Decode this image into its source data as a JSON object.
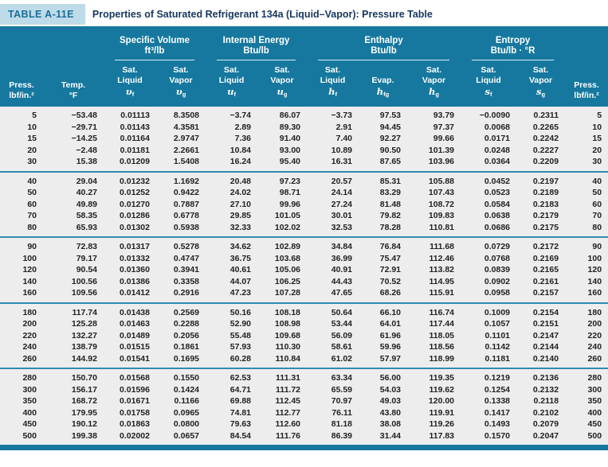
{
  "header": {
    "table_number": "TABLE A-11E",
    "title": "Properties of Saturated Refrigerant 134a (Liquid–Vapor): Pressure Table"
  },
  "colors": {
    "band_teal": "#16789f",
    "badge_bg": "#bedbe9",
    "badge_text": "#1b6d97",
    "title_text": "#17375f",
    "data_bg": "#ededee",
    "group_rule": "#2e8cb0"
  },
  "table": {
    "group_headers": [
      {
        "title": "Specific Volume",
        "unit": "ft³/lb"
      },
      {
        "title": "Internal Energy",
        "unit": "Btu/lb"
      },
      {
        "title": "Enthalpy",
        "unit": "Btu/lb"
      },
      {
        "title": "Entropy",
        "unit": "Btu/lb · °R"
      }
    ],
    "columns": [
      {
        "l1": "Press.",
        "l2": "lbf/in.²"
      },
      {
        "l1": "Temp.",
        "l2": "°F"
      },
      {
        "l1": "Sat.",
        "l2": "Liquid",
        "sym_b": "υ",
        "sym_s": "f"
      },
      {
        "l1": "Sat.",
        "l2": "Vapor",
        "sym_b": "υ",
        "sym_s": "g"
      },
      {
        "l1": "Sat.",
        "l2": "Liquid",
        "sym_b": "u",
        "sym_s": "f"
      },
      {
        "l1": "Sat.",
        "l2": "Vapor",
        "sym_b": "u",
        "sym_s": "g"
      },
      {
        "l1": "Sat.",
        "l2": "Liquid",
        "sym_b": "h",
        "sym_s": "f"
      },
      {
        "l1": "Evap.",
        "sym_b": "h",
        "sym_s": "fg"
      },
      {
        "l1": "Sat.",
        "l2": "Vapor",
        "sym_b": "h",
        "sym_s": "g"
      },
      {
        "l1": "Sat.",
        "l2": "Liquid",
        "sym_b": "s",
        "sym_s": "f"
      },
      {
        "l1": "Sat.",
        "l2": "Vapor",
        "sym_b": "s",
        "sym_s": "g"
      },
      {
        "l1": "Press.",
        "l2": "lbf/in.²"
      }
    ],
    "groups": [
      {
        "rows": [
          [
            "5",
            "−53.48",
            "0.01113",
            "8.3508",
            "−3.74",
            "86.07",
            "−3.73",
            "97.53",
            "93.79",
            "−0.0090",
            "0.2311",
            "5"
          ],
          [
            "10",
            "−29.71",
            "0.01143",
            "4.3581",
            "2.89",
            "89.30",
            "2.91",
            "94.45",
            "97.37",
            "0.0068",
            "0.2265",
            "10"
          ],
          [
            "15",
            "−14.25",
            "0.01164",
            "2.9747",
            "7.36",
            "91.40",
            "7.40",
            "92.27",
            "99.66",
            "0.0171",
            "0.2242",
            "15"
          ],
          [
            "20",
            "−2.48",
            "0.01181",
            "2.2661",
            "10.84",
            "93.00",
            "10.89",
            "90.50",
            "101.39",
            "0.0248",
            "0.2227",
            "20"
          ],
          [
            "30",
            "15.38",
            "0.01209",
            "1.5408",
            "16.24",
            "95.40",
            "16.31",
            "87.65",
            "103.96",
            "0.0364",
            "0.2209",
            "30"
          ]
        ]
      },
      {
        "rows": [
          [
            "40",
            "29.04",
            "0.01232",
            "1.1692",
            "20.48",
            "97.23",
            "20.57",
            "85.31",
            "105.88",
            "0.0452",
            "0.2197",
            "40"
          ],
          [
            "50",
            "40.27",
            "0.01252",
            "0.9422",
            "24.02",
            "98.71",
            "24.14",
            "83.29",
            "107.43",
            "0.0523",
            "0.2189",
            "50"
          ],
          [
            "60",
            "49.89",
            "0.01270",
            "0.7887",
            "27.10",
            "99.96",
            "27.24",
            "81.48",
            "108.72",
            "0.0584",
            "0.2183",
            "60"
          ],
          [
            "70",
            "58.35",
            "0.01286",
            "0.6778",
            "29.85",
            "101.05",
            "30.01",
            "79.82",
            "109.83",
            "0.0638",
            "0.2179",
            "70"
          ],
          [
            "80",
            "65.93",
            "0.01302",
            "0.5938",
            "32.33",
            "102.02",
            "32.53",
            "78.28",
            "110.81",
            "0.0686",
            "0.2175",
            "80"
          ]
        ]
      },
      {
        "rows": [
          [
            "90",
            "72.83",
            "0.01317",
            "0.5278",
            "34.62",
            "102.89",
            "34.84",
            "76.84",
            "111.68",
            "0.0729",
            "0.2172",
            "90"
          ],
          [
            "100",
            "79.17",
            "0.01332",
            "0.4747",
            "36.75",
            "103.68",
            "36.99",
            "75.47",
            "112.46",
            "0.0768",
            "0.2169",
            "100"
          ],
          [
            "120",
            "90.54",
            "0.01360",
            "0.3941",
            "40.61",
            "105.06",
            "40.91",
            "72.91",
            "113.82",
            "0.0839",
            "0.2165",
            "120"
          ],
          [
            "140",
            "100.56",
            "0.01386",
            "0.3358",
            "44.07",
            "106.25",
            "44.43",
            "70.52",
            "114.95",
            "0.0902",
            "0.2161",
            "140"
          ],
          [
            "160",
            "109.56",
            "0.01412",
            "0.2916",
            "47.23",
            "107.28",
            "47.65",
            "68.26",
            "115.91",
            "0.0958",
            "0.2157",
            "160"
          ]
        ]
      },
      {
        "rows": [
          [
            "180",
            "117.74",
            "0.01438",
            "0.2569",
            "50.16",
            "108.18",
            "50.64",
            "66.10",
            "116.74",
            "0.1009",
            "0.2154",
            "180"
          ],
          [
            "200",
            "125.28",
            "0.01463",
            "0.2288",
            "52.90",
            "108.98",
            "53.44",
            "64.01",
            "117.44",
            "0.1057",
            "0.2151",
            "200"
          ],
          [
            "220",
            "132.27",
            "0.01489",
            "0.2056",
            "55.48",
            "109.68",
            "56.09",
            "61.96",
            "118.05",
            "0.1101",
            "0.2147",
            "220"
          ],
          [
            "240",
            "138.79",
            "0.01515",
            "0.1861",
            "57.93",
            "110.30",
            "58.61",
            "59.96",
            "118.56",
            "0.1142",
            "0.2144",
            "240"
          ],
          [
            "260",
            "144.92",
            "0.01541",
            "0.1695",
            "60.28",
            "110.84",
            "61.02",
            "57.97",
            "118.99",
            "0.1181",
            "0.2140",
            "260"
          ]
        ]
      },
      {
        "rows": [
          [
            "280",
            "150.70",
            "0.01568",
            "0.1550",
            "62.53",
            "111.31",
            "63.34",
            "56.00",
            "119.35",
            "0.1219",
            "0.2136",
            "280"
          ],
          [
            "300",
            "156.17",
            "0.01596",
            "0.1424",
            "64.71",
            "111.72",
            "65.59",
            "54.03",
            "119.62",
            "0.1254",
            "0.2132",
            "300"
          ],
          [
            "350",
            "168.72",
            "0.01671",
            "0.1166",
            "69.88",
            "112.45",
            "70.97",
            "49.03",
            "120.00",
            "0.1338",
            "0.2118",
            "350"
          ],
          [
            "400",
            "179.95",
            "0.01758",
            "0.0965",
            "74.81",
            "112.77",
            "76.11",
            "43.80",
            "119.91",
            "0.1417",
            "0.2102",
            "400"
          ],
          [
            "450",
            "190.12",
            "0.01863",
            "0.0800",
            "79.63",
            "112.60",
            "81.18",
            "38.08",
            "119.26",
            "0.1493",
            "0.2079",
            "450"
          ],
          [
            "500",
            "199.38",
            "0.02002",
            "0.0657",
            "84.54",
            "111.76",
            "86.39",
            "31.44",
            "117.83",
            "0.1570",
            "0.2047",
            "500"
          ]
        ]
      }
    ]
  }
}
